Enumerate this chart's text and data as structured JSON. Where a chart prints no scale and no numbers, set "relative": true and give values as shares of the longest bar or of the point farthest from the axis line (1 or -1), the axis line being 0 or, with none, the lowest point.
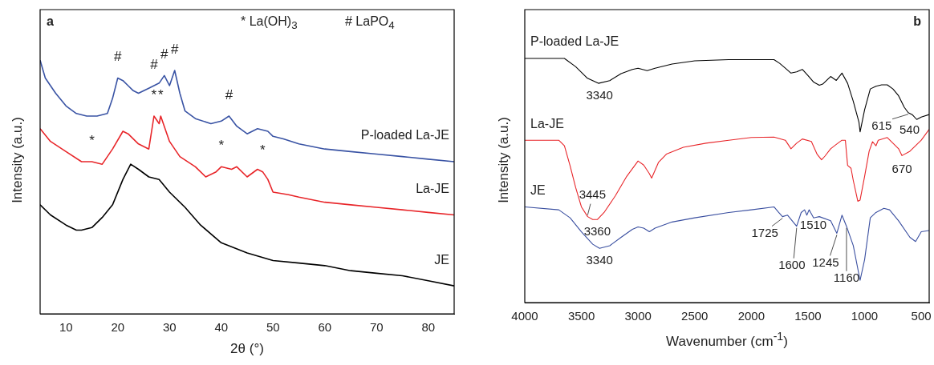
{
  "chart_data": [
    {
      "type": "line",
      "relative": true,
      "xlabel": "2θ (°)",
      "ylabel": "Intensity (a.u.)",
      "xlim": [
        5,
        85
      ],
      "xticks": [
        10,
        20,
        30,
        40,
        50,
        60,
        70,
        80
      ],
      "grid": false,
      "legend": false,
      "series": [
        {
          "name": "P-loaded La-JE",
          "color": "#3953a4",
          "x": [
            5,
            6,
            8,
            10,
            12,
            14,
            16,
            18,
            19,
            20,
            21,
            22,
            23,
            24,
            26,
            27,
            28,
            29,
            30,
            31,
            32,
            33,
            35,
            38,
            40,
            41.5,
            43,
            45,
            47,
            49,
            50,
            52,
            55,
            60,
            65,
            70,
            75,
            80,
            85
          ],
          "values": [
            1.0,
            0.93,
            0.87,
            0.82,
            0.79,
            0.78,
            0.78,
            0.79,
            0.85,
            0.93,
            0.92,
            0.9,
            0.88,
            0.87,
            0.89,
            0.9,
            0.91,
            0.94,
            0.9,
            0.96,
            0.87,
            0.8,
            0.77,
            0.75,
            0.76,
            0.78,
            0.74,
            0.71,
            0.73,
            0.72,
            0.7,
            0.69,
            0.67,
            0.65,
            0.64,
            0.63,
            0.62,
            0.61,
            0.6
          ]
        },
        {
          "name": "La-JE",
          "color": "#e8262a",
          "x": [
            5,
            7,
            10,
            13,
            15,
            17,
            19,
            21,
            22,
            24,
            26,
            27,
            28,
            28.3,
            30,
            32,
            35,
            37,
            39,
            40,
            42,
            43,
            45,
            47,
            48,
            49,
            50,
            53,
            55,
            60,
            65,
            70,
            75,
            80,
            85
          ],
          "values": [
            0.73,
            0.68,
            0.64,
            0.6,
            0.6,
            0.59,
            0.65,
            0.72,
            0.71,
            0.67,
            0.65,
            0.78,
            0.75,
            0.78,
            0.68,
            0.62,
            0.58,
            0.54,
            0.56,
            0.58,
            0.57,
            0.58,
            0.54,
            0.57,
            0.56,
            0.53,
            0.48,
            0.47,
            0.46,
            0.44,
            0.43,
            0.42,
            0.41,
            0.4,
            0.39
          ]
        },
        {
          "name": "JE",
          "color": "#000000",
          "x": [
            5,
            7,
            10,
            12,
            13,
            15,
            17,
            19,
            21,
            22.5,
            24,
            26,
            28,
            30,
            33,
            36,
            40,
            45,
            50,
            55,
            60,
            65,
            70,
            75,
            80,
            85
          ],
          "values": [
            0.43,
            0.39,
            0.35,
            0.33,
            0.33,
            0.34,
            0.38,
            0.43,
            0.53,
            0.59,
            0.57,
            0.54,
            0.53,
            0.48,
            0.42,
            0.35,
            0.28,
            0.24,
            0.21,
            0.2,
            0.19,
            0.17,
            0.16,
            0.15,
            0.13,
            0.11
          ]
        }
      ],
      "annotations": [
        "a",
        "* La(OH)$_{3}$",
        "# LaPO$_{4}$",
        {
          "text": "#",
          "x": 20,
          "y": 0.93
        },
        {
          "text": "#",
          "x": 27,
          "y": 0.9
        },
        {
          "text": "#",
          "x": 29,
          "y": 0.94
        },
        {
          "text": "#",
          "x": 31,
          "y": 0.96
        },
        {
          "text": "#",
          "x": 41.5,
          "y": 0.78
        },
        {
          "text": "*",
          "x": 15,
          "y": 0.6
        },
        {
          "text": "*",
          "x": 27,
          "y": 0.78
        },
        {
          "text": "*",
          "x": 28.3,
          "y": 0.78
        },
        {
          "text": "*",
          "x": 40,
          "y": 0.58
        },
        {
          "text": "*",
          "x": 48,
          "y": 0.56
        }
      ]
    },
    {
      "type": "line",
      "relative": true,
      "xlabel": "Wavenumber (cm$^{-1}$)",
      "ylabel": "Intensity (a.u.)",
      "xlim": [
        4000,
        430
      ],
      "xticks": [
        4000,
        3500,
        3000,
        2500,
        2000,
        1500,
        1000,
        500
      ],
      "grid": false,
      "legend": false,
      "series": [
        {
          "name": "P-loaded La-JE",
          "color": "#000000",
          "x": [
            4000,
            3650,
            3550,
            3450,
            3350,
            3250,
            3150,
            3050,
            3000,
            2920,
            2850,
            2700,
            2500,
            2200,
            2000,
            1800,
            1750,
            1700,
            1650,
            1600,
            1550,
            1500,
            1450,
            1400,
            1370,
            1300,
            1250,
            1200,
            1150,
            1100,
            1050,
            1040,
            1000,
            950,
            900,
            850,
            800,
            750,
            700,
            650,
            615,
            580,
            540,
            500,
            430
          ],
          "values": [
            1.0,
            1.0,
            0.966,
            0.92,
            0.898,
            0.909,
            0.938,
            0.955,
            0.96,
            0.95,
            0.96,
            0.977,
            0.99,
            0.995,
            0.995,
            0.995,
            0.98,
            0.96,
            0.94,
            0.945,
            0.955,
            0.93,
            0.903,
            0.89,
            0.895,
            0.926,
            0.91,
            0.94,
            0.898,
            0.824,
            0.739,
            0.699,
            0.79,
            0.875,
            0.886,
            0.892,
            0.892,
            0.875,
            0.847,
            0.8,
            0.778,
            0.77,
            0.75,
            0.76,
            0.77
          ]
        },
        {
          "name": "La-JE",
          "color": "#e8262a",
          "x": [
            4000,
            3700,
            3650,
            3600,
            3550,
            3500,
            3445,
            3400,
            3360,
            3300,
            3200,
            3100,
            3000,
            2950,
            2900,
            2880,
            2820,
            2750,
            2600,
            2400,
            2200,
            2000,
            1800,
            1700,
            1650,
            1600,
            1550,
            1470,
            1420,
            1380,
            1350,
            1300,
            1250,
            1200,
            1170,
            1150,
            1120,
            1100,
            1060,
            1040,
            1000,
            960,
            930,
            900,
            880,
            800,
            700,
            670,
            600,
            500,
            430
          ],
          "values": [
            0.665,
            0.665,
            0.642,
            0.56,
            0.47,
            0.392,
            0.352,
            0.34,
            0.34,
            0.369,
            0.4375,
            0.517,
            0.58,
            0.563,
            0.528,
            0.51,
            0.574,
            0.608,
            0.636,
            0.653,
            0.665,
            0.676,
            0.678,
            0.665,
            0.63,
            0.653,
            0.67,
            0.66,
            0.608,
            0.585,
            0.6,
            0.63,
            0.648,
            0.665,
            0.665,
            0.562,
            0.55,
            0.5,
            0.415,
            0.42,
            0.517,
            0.62,
            0.659,
            0.642,
            0.665,
            0.676,
            0.63,
            0.602,
            0.62,
            0.665,
            0.71
          ]
        },
        {
          "name": "JE",
          "color": "#3a4fa0",
          "x": [
            4000,
            3700,
            3600,
            3500,
            3400,
            3340,
            3250,
            3150,
            3050,
            3000,
            2950,
            2900,
            2850,
            2700,
            2500,
            2200,
            2000,
            1800,
            1760,
            1725,
            1680,
            1600,
            1560,
            1530,
            1510,
            1490,
            1450,
            1400,
            1300,
            1245,
            1200,
            1160,
            1100,
            1040,
            1000,
            950,
            900,
            830,
            780,
            700,
            600,
            550,
            500,
            430
          ],
          "values": [
            0.392,
            0.38,
            0.347,
            0.29,
            0.239,
            0.222,
            0.233,
            0.267,
            0.3,
            0.31,
            0.305,
            0.29,
            0.305,
            0.33,
            0.347,
            0.369,
            0.38,
            0.392,
            0.37,
            0.352,
            0.358,
            0.3125,
            0.369,
            0.38,
            0.358,
            0.38,
            0.347,
            0.352,
            0.335,
            0.284,
            0.358,
            0.3125,
            0.233,
            0.091,
            0.176,
            0.347,
            0.369,
            0.386,
            0.38,
            0.335,
            0.267,
            0.25,
            0.29,
            0.295
          ]
        }
      ],
      "annotations": [
        "b",
        {
          "text": "3340",
          "x": 3340,
          "y": 0.898
        },
        {
          "text": "3445",
          "x": 3445,
          "y": 0.352
        },
        {
          "text": "3360",
          "x": 3360,
          "y": 0.34
        },
        {
          "text": "3340",
          "x": 3340,
          "y": 0.222
        },
        {
          "text": "1725",
          "x": 1725,
          "y": 0.352
        },
        {
          "text": "1600",
          "x": 1600,
          "y": 0.3125
        },
        {
          "text": "1510",
          "x": 1510,
          "y": 0.358
        },
        {
          "text": "1245",
          "x": 1245,
          "y": 0.284
        },
        {
          "text": "1160",
          "x": 1160,
          "y": 0.3125
        },
        {
          "text": "670",
          "x": 670,
          "y": 0.602
        },
        {
          "text": "615",
          "x": 615,
          "y": 0.778
        },
        {
          "text": "540",
          "x": 540,
          "y": 0.75
        }
      ]
    }
  ]
}
